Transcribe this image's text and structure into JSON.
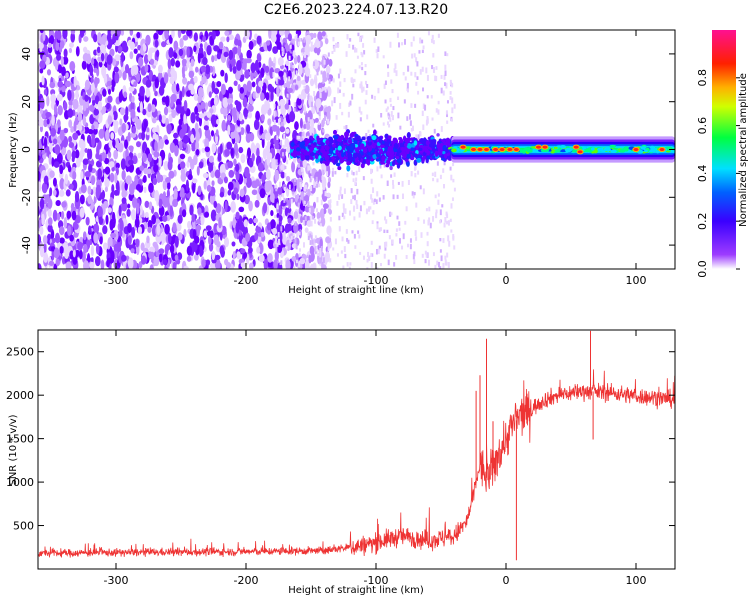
{
  "title": "C2E6.2023.224.07.13.R20",
  "chart_data": [
    {
      "type": "heatmap",
      "xlabel": "Height of straight line (km)",
      "ylabel": "Frequency (Hz)",
      "xlim": [
        -360,
        130
      ],
      "ylim": [
        -50,
        50
      ],
      "x_ticks": [
        -300,
        -200,
        -100,
        0,
        100
      ],
      "y_ticks": [
        -40,
        -20,
        0,
        20,
        40
      ],
      "colorbar": {
        "label": "Normalized spectral amplitude",
        "range": [
          0,
          1
        ],
        "ticks": [
          0.0,
          0.2,
          0.4,
          0.6,
          0.8
        ],
        "colors": [
          "#ffffff",
          "#7f00ff",
          "#0000ff",
          "#00ffff",
          "#00ff00",
          "#ffff00",
          "#ff7f00",
          "#ff0000",
          "#ff1493"
        ]
      },
      "regions": [
        {
          "x_from": -360,
          "x_to": -165,
          "freq_spread": 50,
          "intensity": 0.15,
          "description_value": "diffuse noise"
        },
        {
          "x_from": -165,
          "x_to": -40,
          "freq_spread": 10,
          "intensity": 0.35
        },
        {
          "x_from": -40,
          "x_to": 130,
          "freq_spread": 3,
          "intensity": 0.6
        }
      ],
      "peak_marks": [
        {
          "x": -33,
          "y": 1
        },
        {
          "x": -25,
          "y": 0
        },
        {
          "x": -20,
          "y": 0
        },
        {
          "x": -15,
          "y": 0
        },
        {
          "x": -8,
          "y": 0
        },
        {
          "x": -3,
          "y": 0
        },
        {
          "x": 3,
          "y": 0
        },
        {
          "x": 8,
          "y": 0
        },
        {
          "x": 25,
          "y": 1
        },
        {
          "x": 30,
          "y": 1
        },
        {
          "x": 54,
          "y": 1
        },
        {
          "x": 57,
          "y": -1
        },
        {
          "x": 100,
          "y": 0
        },
        {
          "x": 120,
          "y": 0
        }
      ]
    },
    {
      "type": "line",
      "xlabel": "Height of straight line (km)",
      "ylabel": "SNR (10 * v/v)",
      "xlim": [
        -360,
        130
      ],
      "ylim": [
        0,
        2750
      ],
      "x_ticks": [
        -300,
        -200,
        -100,
        0,
        100
      ],
      "y_ticks": [
        500,
        1000,
        1500,
        2000,
        2500
      ],
      "color": "#ee3333",
      "envelope": {
        "x": [
          -360,
          -300,
          -200,
          -140,
          -110,
          -80,
          -60,
          -40,
          -30,
          -25,
          -20,
          -15,
          -10,
          -5,
          0,
          5,
          10,
          20,
          30,
          40,
          60,
          80,
          100,
          130
        ],
        "y": [
          180,
          190,
          200,
          210,
          270,
          380,
          330,
          370,
          550,
          850,
          1200,
          1050,
          1150,
          1350,
          1500,
          1650,
          1750,
          1850,
          1950,
          2000,
          2050,
          2030,
          1990,
          1950
        ]
      },
      "spikes": [
        {
          "x": -23,
          "y": 2050
        },
        {
          "x": -20,
          "y": 2230
        },
        {
          "x": -15,
          "y": 2650
        },
        {
          "x": -10,
          "y": 1700
        },
        {
          "x": 8,
          "y": 100
        },
        {
          "x": 65,
          "y": 2740
        },
        {
          "x": 67,
          "y": 1490
        }
      ]
    }
  ]
}
